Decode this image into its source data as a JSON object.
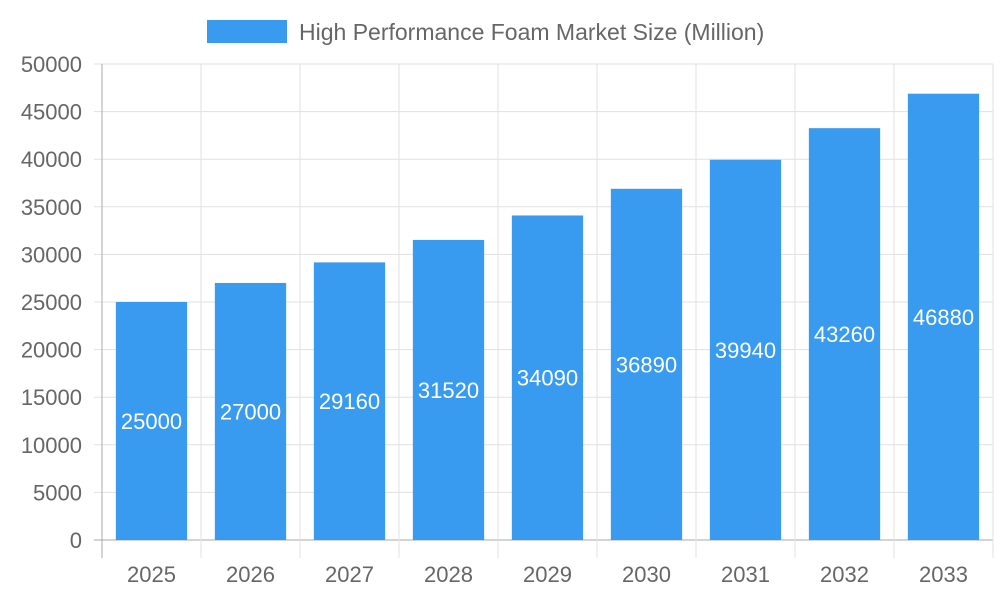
{
  "chart_data": {
    "type": "bar",
    "categories": [
      "2025",
      "2026",
      "2027",
      "2028",
      "2029",
      "2030",
      "2031",
      "2032",
      "2033"
    ],
    "series": [
      {
        "name": "High Performance Foam Market Size (Million)",
        "values": [
          25000,
          27000,
          29160,
          31520,
          34090,
          36890,
          39940,
          43260,
          46880
        ],
        "color": "#389bf0"
      }
    ],
    "ylim": [
      0,
      50000
    ],
    "yticks": [
      0,
      5000,
      10000,
      15000,
      20000,
      25000,
      30000,
      35000,
      40000,
      45000,
      50000
    ],
    "grid": true,
    "legend_position": "top",
    "data_labels": true
  }
}
